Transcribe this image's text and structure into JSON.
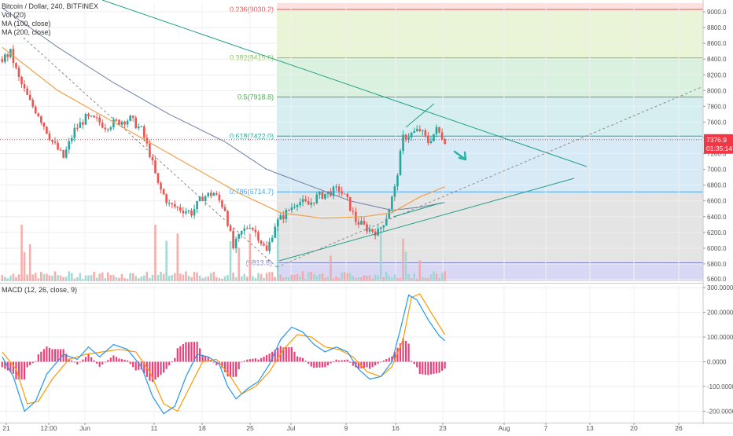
{
  "legend": {
    "title": "Bitcoin / Dollar, 240, BITFINEX",
    "vol": "Vol (20)",
    "ma100": "MA (100, close)",
    "ma200": "MA (200, close)",
    "macd": "MACD (12, 26, close, 9)"
  },
  "price_badge": {
    "price": "7376.9",
    "countdown": "01:35:14"
  },
  "colors": {
    "up": "#26a69a",
    "down": "#ef5350",
    "ma100": "#f0a04a",
    "ma200": "#6f7fa8",
    "macd_line": "#2196f3",
    "signal_line": "#ff9800",
    "hist": "#e91e63",
    "trend": "#21a086",
    "badge": "#f23645"
  },
  "chart_data": [
    {
      "type": "candlestick",
      "title": "Bitcoin / Dollar, 240, BITFINEX",
      "x_ticks": [
        "21",
        "12:00",
        "Jun",
        "11",
        "18",
        "25",
        "Jul",
        "9",
        "16",
        "23",
        "Aug",
        "7",
        "13",
        "20",
        "26"
      ],
      "y_ticks": [
        5600,
        5800,
        6000,
        6200,
        6400,
        6600,
        6800,
        7000,
        7200,
        7400,
        7600,
        7800,
        8000,
        8200,
        8400,
        8600,
        8800,
        9000
      ],
      "ylim": [
        5580,
        9110
      ],
      "candle_count": 160,
      "last_price": 7376.9,
      "price_path": [
        {
          "i": 0,
          "p": 8400
        },
        {
          "i": 3,
          "p": 8480
        },
        {
          "i": 6,
          "p": 8150
        },
        {
          "i": 10,
          "p": 7850
        },
        {
          "i": 13,
          "p": 7700
        },
        {
          "i": 18,
          "p": 7350
        },
        {
          "i": 22,
          "p": 7150
        },
        {
          "i": 26,
          "p": 7500
        },
        {
          "i": 30,
          "p": 7650
        },
        {
          "i": 34,
          "p": 7620
        },
        {
          "i": 37,
          "p": 7550
        },
        {
          "i": 41,
          "p": 7600
        },
        {
          "i": 46,
          "p": 7640
        },
        {
          "i": 50,
          "p": 7500
        },
        {
          "i": 53,
          "p": 7200
        },
        {
          "i": 56,
          "p": 6800
        },
        {
          "i": 60,
          "p": 6550
        },
        {
          "i": 64,
          "p": 6500
        },
        {
          "i": 68,
          "p": 6450
        },
        {
          "i": 72,
          "p": 6650
        },
        {
          "i": 76,
          "p": 6700
        },
        {
          "i": 80,
          "p": 6500
        },
        {
          "i": 83,
          "p": 6000
        },
        {
          "i": 86,
          "p": 6200
        },
        {
          "i": 89,
          "p": 6300
        },
        {
          "i": 92,
          "p": 6150
        },
        {
          "i": 95,
          "p": 5950
        },
        {
          "i": 98,
          "p": 6300
        },
        {
          "i": 102,
          "p": 6450
        },
        {
          "i": 106,
          "p": 6600
        },
        {
          "i": 110,
          "p": 6550
        },
        {
          "i": 113,
          "p": 6650
        },
        {
          "i": 117,
          "p": 6700
        },
        {
          "i": 121,
          "p": 6750
        },
        {
          "i": 124,
          "p": 6600
        },
        {
          "i": 127,
          "p": 6350
        },
        {
          "i": 131,
          "p": 6250
        },
        {
          "i": 135,
          "p": 6200
        },
        {
          "i": 138,
          "p": 6400
        },
        {
          "i": 141,
          "p": 6750
        },
        {
          "i": 144,
          "p": 7400
        },
        {
          "i": 147,
          "p": 7450
        },
        {
          "i": 150,
          "p": 7500
        },
        {
          "i": 153,
          "p": 7350
        },
        {
          "i": 156,
          "p": 7500
        },
        {
          "i": 159,
          "p": 7377
        }
      ],
      "ma100_path": [
        {
          "i": 0,
          "p": 8550
        },
        {
          "i": 20,
          "p": 8000
        },
        {
          "i": 40,
          "p": 7600
        },
        {
          "i": 55,
          "p": 7300
        },
        {
          "i": 70,
          "p": 7000
        },
        {
          "i": 85,
          "p": 6700
        },
        {
          "i": 100,
          "p": 6450
        },
        {
          "i": 115,
          "p": 6380
        },
        {
          "i": 130,
          "p": 6400
        },
        {
          "i": 140,
          "p": 6450
        },
        {
          "i": 150,
          "p": 6650
        },
        {
          "i": 159,
          "p": 6780
        }
      ],
      "ma200_path": [
        {
          "i": 0,
          "p": 9050
        },
        {
          "i": 20,
          "p": 8550
        },
        {
          "i": 40,
          "p": 8100
        },
        {
          "i": 60,
          "p": 7700
        },
        {
          "i": 80,
          "p": 7350
        },
        {
          "i": 95,
          "p": 7000
        },
        {
          "i": 110,
          "p": 6800
        },
        {
          "i": 125,
          "p": 6600
        },
        {
          "i": 140,
          "p": 6480
        },
        {
          "i": 150,
          "p": 6520
        },
        {
          "i": 159,
          "p": 6580
        }
      ],
      "fib_levels": [
        {
          "label": "0.236(9030.2)",
          "value": 9030.2,
          "line": "#ef5350",
          "fill": "#fde0e0"
        },
        {
          "label": "0.382(8415.6)",
          "value": 8415.6,
          "line": "#8bc34a",
          "fill": "#eaf5d8"
        },
        {
          "label": "0.5(7918.8)",
          "value": 7918.8,
          "line": "#4caf50",
          "fill": "#dbf1df"
        },
        {
          "label": "0.618(7422.0)",
          "value": 7422.0,
          "line": "#26a69a",
          "fill": "#d6eef0"
        },
        {
          "label": "0.786(6714.7)",
          "value": 6714.7,
          "line": "#42a5f5",
          "fill": "#d9eaf7"
        },
        {
          "label": "(5813.8)",
          "value": 5813.8,
          "line": "#7b7fd6",
          "fill": "#e4e4e4"
        }
      ],
      "fib_bottom_fill": "#d8d8f5"
    },
    {
      "type": "bar",
      "title": "MACD (12, 26, close, 9)",
      "y_ticks": [
        -200,
        -100,
        0,
        100,
        200,
        300
      ],
      "ylim": [
        -240,
        310
      ],
      "macd_path": [
        {
          "i": 0,
          "v": 20
        },
        {
          "i": 4,
          "v": -60
        },
        {
          "i": 8,
          "v": -200
        },
        {
          "i": 12,
          "v": -160
        },
        {
          "i": 16,
          "v": -50
        },
        {
          "i": 22,
          "v": 30
        },
        {
          "i": 27,
          "v": 10
        },
        {
          "i": 31,
          "v": 60
        },
        {
          "i": 35,
          "v": 20
        },
        {
          "i": 40,
          "v": 70
        },
        {
          "i": 45,
          "v": 50
        },
        {
          "i": 50,
          "v": -20
        },
        {
          "i": 54,
          "v": -140
        },
        {
          "i": 58,
          "v": -210
        },
        {
          "i": 62,
          "v": -180
        },
        {
          "i": 66,
          "v": -60
        },
        {
          "i": 70,
          "v": 30
        },
        {
          "i": 74,
          "v": 20
        },
        {
          "i": 78,
          "v": -10
        },
        {
          "i": 81,
          "v": -100
        },
        {
          "i": 84,
          "v": -150
        },
        {
          "i": 88,
          "v": -110
        },
        {
          "i": 92,
          "v": -80
        },
        {
          "i": 96,
          "v": -10
        },
        {
          "i": 100,
          "v": 90
        },
        {
          "i": 104,
          "v": 140
        },
        {
          "i": 108,
          "v": 120
        },
        {
          "i": 112,
          "v": 70
        },
        {
          "i": 116,
          "v": 40
        },
        {
          "i": 120,
          "v": 60
        },
        {
          "i": 124,
          "v": 40
        },
        {
          "i": 128,
          "v": -30
        },
        {
          "i": 132,
          "v": -70
        },
        {
          "i": 136,
          "v": -60
        },
        {
          "i": 140,
          "v": 0
        },
        {
          "i": 143,
          "v": 130
        },
        {
          "i": 146,
          "v": 270
        },
        {
          "i": 149,
          "v": 250
        },
        {
          "i": 153,
          "v": 170
        },
        {
          "i": 157,
          "v": 105
        },
        {
          "i": 159,
          "v": 85
        }
      ],
      "signal_path": [
        {
          "i": 0,
          "v": 40
        },
        {
          "i": 5,
          "v": -30
        },
        {
          "i": 9,
          "v": -170
        },
        {
          "i": 13,
          "v": -160
        },
        {
          "i": 18,
          "v": -70
        },
        {
          "i": 24,
          "v": 10
        },
        {
          "i": 30,
          "v": 30
        },
        {
          "i": 36,
          "v": 40
        },
        {
          "i": 42,
          "v": 50
        },
        {
          "i": 48,
          "v": 40
        },
        {
          "i": 53,
          "v": -40
        },
        {
          "i": 58,
          "v": -170
        },
        {
          "i": 63,
          "v": -200
        },
        {
          "i": 67,
          "v": -110
        },
        {
          "i": 72,
          "v": 0
        },
        {
          "i": 77,
          "v": 10
        },
        {
          "i": 82,
          "v": -60
        },
        {
          "i": 86,
          "v": -130
        },
        {
          "i": 91,
          "v": -100
        },
        {
          "i": 96,
          "v": -40
        },
        {
          "i": 101,
          "v": 50
        },
        {
          "i": 106,
          "v": 110
        },
        {
          "i": 111,
          "v": 100
        },
        {
          "i": 116,
          "v": 60
        },
        {
          "i": 121,
          "v": 50
        },
        {
          "i": 126,
          "v": 20
        },
        {
          "i": 131,
          "v": -40
        },
        {
          "i": 136,
          "v": -60
        },
        {
          "i": 140,
          "v": -20
        },
        {
          "i": 144,
          "v": 90
        },
        {
          "i": 147,
          "v": 260
        },
        {
          "i": 150,
          "v": 275
        },
        {
          "i": 154,
          "v": 200
        },
        {
          "i": 159,
          "v": 110
        }
      ]
    }
  ]
}
